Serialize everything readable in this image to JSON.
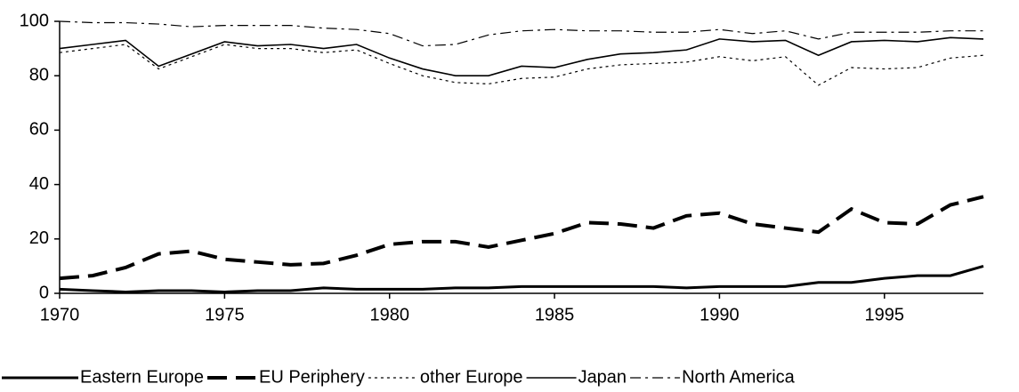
{
  "chart_data": {
    "type": "line",
    "x": [
      1970,
      1971,
      1972,
      1973,
      1974,
      1975,
      1976,
      1977,
      1978,
      1979,
      1980,
      1981,
      1982,
      1983,
      1984,
      1985,
      1986,
      1987,
      1988,
      1989,
      1990,
      1991,
      1992,
      1993,
      1994,
      1995,
      1996,
      1997,
      1998
    ],
    "xlim": [
      1970,
      1998
    ],
    "xticks": [
      1970,
      1975,
      1980,
      1985,
      1990,
      1995
    ],
    "ylim": [
      0,
      100
    ],
    "yticks": [
      0,
      20,
      40,
      60,
      80,
      100
    ],
    "grid": false,
    "legend": "bottom",
    "series": [
      {
        "name": "Eastern Europe",
        "color": "#000000",
        "width": 3,
        "dash": "none",
        "values": [
          1.5,
          1,
          0.5,
          1,
          1,
          0.5,
          1,
          1,
          2,
          1.5,
          1.5,
          1.5,
          2,
          2,
          2.5,
          2.5,
          2.5,
          2.5,
          2.5,
          2,
          2.5,
          2.5,
          2.5,
          4,
          4,
          5.5,
          6.5,
          6.5,
          10
        ]
      },
      {
        "name": "EU Periphery",
        "color": "#000000",
        "width": 4,
        "dash": "22 10",
        "values": [
          5.5,
          6.5,
          9.5,
          14.5,
          15.5,
          12.5,
          11.5,
          10.5,
          11,
          14,
          18,
          19,
          19,
          17,
          19.5,
          22,
          26,
          25.5,
          24,
          28.5,
          29.5,
          25.5,
          24,
          22.5,
          31,
          26,
          25.5,
          32.5,
          35.5
        ]
      },
      {
        "name": "other Europe",
        "color": "#000000",
        "width": 1.2,
        "dash": "3 4",
        "values": [
          88.5,
          90,
          91.5,
          82.5,
          87,
          91.5,
          90,
          90,
          88.5,
          89.5,
          84.5,
          80,
          77.5,
          77,
          79,
          79.5,
          82.5,
          84,
          84.5,
          85,
          87,
          85.5,
          87,
          76.5,
          83,
          82.5,
          83,
          86.5,
          87.5
        ]
      },
      {
        "name": "Japan",
        "color": "#000000",
        "width": 1.6,
        "dash": "none",
        "values": [
          90,
          91.5,
          93,
          83.5,
          88,
          92.5,
          91,
          91.5,
          90,
          91.5,
          86.5,
          82.5,
          80,
          80,
          83.5,
          83,
          86,
          88,
          88.5,
          89.5,
          93.5,
          92.5,
          93,
          87.5,
          92.5,
          93,
          92.5,
          94,
          93.5
        ]
      },
      {
        "name": "North America",
        "color": "#000000",
        "width": 1.2,
        "dash": "12 5 3 5",
        "values": [
          100,
          99.5,
          99.5,
          99,
          98,
          98.5,
          98.5,
          98.5,
          97.5,
          97,
          95.5,
          91,
          91.5,
          95,
          96.5,
          97,
          96.5,
          96.5,
          96,
          96,
          97,
          95.5,
          96.5,
          93.5,
          96,
          96,
          96,
          96.5,
          96.5
        ]
      }
    ]
  }
}
